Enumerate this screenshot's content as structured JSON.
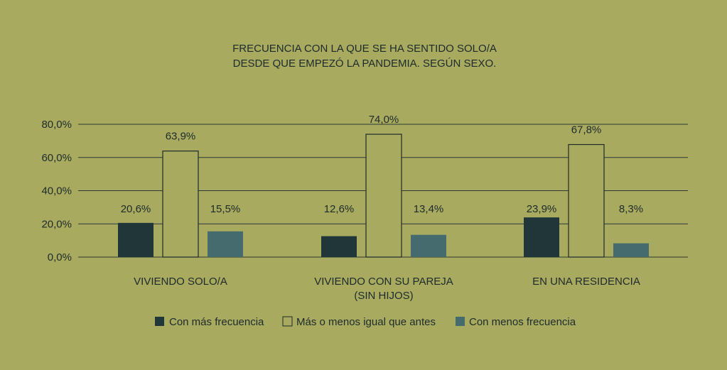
{
  "chart_data": {
    "type": "bar",
    "title_lines": [
      "FRECUENCIA CON LA QUE SE HA SENTIDO SOLO/A",
      "DESDE QUE EMPEZÓ LA PANDEMIA. SEGÚN SEXO."
    ],
    "categories": [
      [
        "VIVIENDO SOLO/A"
      ],
      [
        "VIVIENDO CON SU PAREJA",
        "(SIN HIJOS)"
      ],
      [
        "EN UNA RESIDENCIA"
      ]
    ],
    "series": [
      {
        "name": "Con más frecuencia",
        "values": [
          20.6,
          12.6,
          23.9
        ],
        "labels": [
          "20,6%",
          "12,6%",
          "23,9%"
        ],
        "color": "#203638"
      },
      {
        "name": "Más o menos igual que antes",
        "values": [
          63.9,
          74.0,
          67.8
        ],
        "labels": [
          "63,9%",
          "74,0%",
          "67,8%"
        ],
        "color": "#a8ab5f"
      },
      {
        "name": "Con menos frecuencia",
        "values": [
          15.5,
          13.4,
          8.3
        ],
        "labels": [
          "15,5%",
          "13,4%",
          "8,3%"
        ],
        "color": "#456b6e"
      }
    ],
    "y_ticks": [
      0,
      20,
      40,
      60,
      80
    ],
    "y_tick_labels": [
      "0,0%",
      "20,0%",
      "40,0%",
      "60,0%",
      "80,0%"
    ],
    "ylim": [
      0,
      80
    ],
    "grid": true,
    "legend_position": "bottom",
    "colors": {
      "background": "#a8ab5f",
      "ink": "#1e2a2c",
      "gridline": "#2b3a36"
    }
  }
}
